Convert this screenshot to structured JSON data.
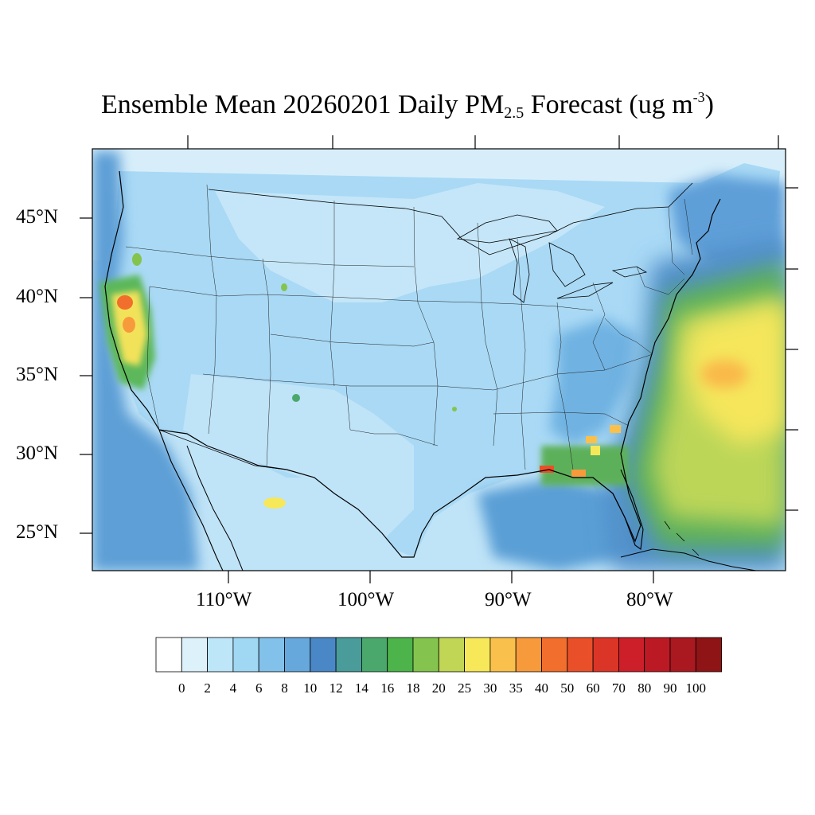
{
  "title": {
    "prefix": "Ensemble Mean 20260201 Daily PM",
    "subscript": "2.5",
    "middle": " Forecast (ug m",
    "superscript": "-3",
    "suffix": ")"
  },
  "map": {
    "lat_labels": [
      "45°N",
      "40°N",
      "35°N",
      "30°N",
      "25°N"
    ],
    "lon_labels": [
      "110°W",
      "100°W",
      "90°W",
      "80°W"
    ],
    "ocean_color": "#c8e7f8",
    "land_color": "#a6d8f5"
  },
  "colorbar": {
    "colors": [
      "#ffffff",
      "#ddf1fb",
      "#bde6f8",
      "#a0d8f4",
      "#82c1ea",
      "#66a8dc",
      "#4a87c6",
      "#4a9c9a",
      "#4aa86c",
      "#4cb44a",
      "#84c44e",
      "#c2d656",
      "#f7e85a",
      "#f9c04c",
      "#f79a3c",
      "#f26e2c",
      "#e9502a",
      "#db3528",
      "#cc1f2a",
      "#bb1a24",
      "#aa1820",
      "#8e1416"
    ],
    "labels": [
      "0",
      "2",
      "4",
      "6",
      "8",
      "10",
      "12",
      "14",
      "16",
      "18",
      "20",
      "25",
      "30",
      "35",
      "40",
      "50",
      "60",
      "70",
      "80",
      "90",
      "100"
    ]
  }
}
